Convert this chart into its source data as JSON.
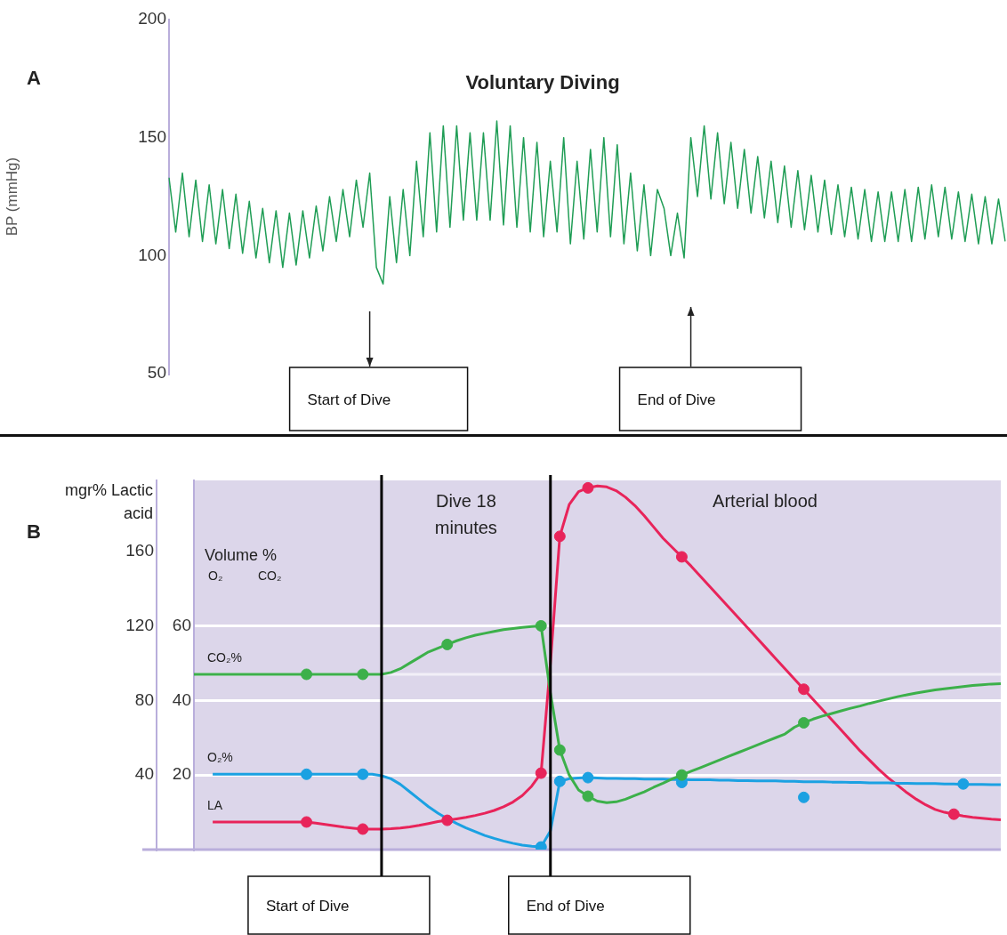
{
  "chart_data": [
    {
      "type": "line",
      "title": "Voluntary Diving",
      "ylabel": "BP (mmHg)",
      "ylim": [
        50,
        200
      ],
      "yticks": [
        50,
        100,
        150,
        200
      ],
      "tick_labels": "y",
      "grid": false,
      "legend": false,
      "annotations": [
        "A",
        "Start of Dive",
        "End of Dive"
      ],
      "categories": [
        null,
        null,
        null,
        null,
        null,
        null,
        null,
        null,
        null,
        null,
        null,
        null,
        null,
        null,
        null,
        null,
        null,
        null,
        null,
        null,
        null,
        null,
        null,
        null,
        null,
        null,
        null,
        null,
        null,
        null,
        null,
        null,
        null,
        null,
        null,
        null,
        null,
        null,
        null,
        null,
        null,
        null,
        null,
        null,
        null,
        null,
        null,
        null,
        null,
        null,
        null,
        null,
        null,
        null,
        null,
        null,
        null,
        null,
        null,
        null,
        null,
        null,
        null,
        null,
        null,
        null,
        null,
        null,
        null,
        null,
        null,
        null,
        null,
        null,
        null,
        null,
        null,
        null,
        null,
        null,
        null,
        null,
        null,
        null,
        null,
        null,
        null,
        null,
        null,
        null,
        null,
        null,
        null,
        null,
        null,
        null,
        null,
        null,
        null,
        null,
        null,
        null,
        null,
        null,
        null,
        null,
        null,
        null,
        null,
        null,
        null,
        null,
        null,
        null,
        null,
        null,
        null,
        null,
        null,
        null,
        null,
        null,
        null,
        null,
        null,
        null
      ],
      "series": [
        {
          "type": "line",
          "color": "#1f9d55",
          "values": [
            133,
            110,
            135,
            108,
            132,
            106,
            130,
            105,
            128,
            103,
            126,
            101,
            123,
            99,
            120,
            97,
            119,
            95,
            118,
            96,
            119,
            99,
            121,
            102,
            125,
            106,
            128,
            108,
            132,
            112,
            135,
            95,
            88,
            125,
            97,
            128,
            100,
            140,
            108,
            152,
            110,
            155,
            112,
            155,
            115,
            152,
            115,
            152,
            115,
            157,
            113,
            155,
            112,
            150,
            110,
            148,
            108,
            140,
            110,
            150,
            105,
            140,
            107,
            145,
            110,
            150,
            108,
            147,
            105,
            135,
            102,
            130,
            100,
            128,
            120,
            100,
            118,
            99,
            150,
            125,
            155,
            124,
            152,
            122,
            148,
            120,
            145,
            118,
            142,
            116,
            140,
            114,
            138,
            112,
            136,
            111,
            134,
            110,
            132,
            109,
            130,
            108,
            129,
            107,
            128,
            106,
            127,
            106,
            127,
            106,
            128,
            106,
            129,
            107,
            130,
            108,
            129,
            107,
            127,
            106,
            126,
            105,
            125,
            105,
            124,
            106
          ]
        }
      ]
    },
    {
      "type": "line",
      "ylabel": "mgr% Lactic acid",
      "y2label": "Volume %",
      "ylim": [
        0,
        198
      ],
      "yticks": [
        40,
        80,
        120,
        160
      ],
      "y2lim": [
        0,
        99
      ],
      "y2ticks": [
        20,
        40,
        60
      ],
      "tick_labels": "y",
      "grid": "y2",
      "legend": false,
      "annotations": [
        "B",
        "O₂",
        "CO₂",
        "Dive 18 minutes",
        "Arterial blood",
        "Start of Dive",
        "End of Dive"
      ],
      "ref_lines": [
        {
          "axis": "y2",
          "value": 47,
          "color": "#f2eff7"
        }
      ],
      "categories": [
        null,
        null,
        null,
        null,
        null,
        null,
        null,
        null,
        null,
        null,
        null,
        null,
        null,
        null,
        null,
        null,
        null,
        null,
        null,
        null,
        null,
        null,
        null,
        null,
        null,
        null,
        null,
        null,
        null,
        null,
        null,
        null,
        null,
        null,
        null,
        null,
        null,
        null,
        null,
        null,
        null,
        null,
        null,
        null,
        null,
        null,
        null,
        null,
        null,
        null,
        null,
        null,
        null,
        null,
        null,
        null,
        null,
        null,
        null,
        null,
        null,
        null,
        null,
        null,
        null,
        null,
        null,
        null,
        null,
        null,
        null,
        null,
        null,
        null,
        null,
        null,
        null,
        null,
        null,
        null,
        null,
        null,
        null,
        null,
        null,
        null,
        null
      ],
      "series": [
        {
          "name": "CO₂%",
          "type": "line",
          "axis": "y2",
          "color": "#3cb04a",
          "values": [
            47,
            47,
            47,
            47,
            47,
            47,
            47,
            47,
            47,
            47,
            47,
            47,
            47,
            47,
            47,
            47,
            47,
            47,
            47,
            47,
            47,
            47.5,
            48.5,
            50,
            51.5,
            53,
            54,
            55,
            56,
            56.8,
            57.5,
            58,
            58.5,
            59,
            59.3,
            59.6,
            59.8,
            60,
            42,
            26.7,
            20,
            16,
            14.3,
            13,
            12.6,
            12.8,
            13.5,
            14.5,
            15.5,
            16.7,
            17.8,
            19,
            20,
            21,
            22,
            23,
            24,
            25,
            26,
            27,
            28,
            29,
            30,
            31,
            32.8,
            34,
            35,
            35.8,
            36.5,
            37.2,
            37.9,
            38.5,
            39.2,
            39.8,
            40.4,
            41,
            41.5,
            42,
            42.4,
            42.8,
            43.1,
            43.4,
            43.7,
            44,
            44.2,
            44.4,
            44.5
          ]
        },
        {
          "type": "scatter",
          "marker": "circle",
          "axis": "y2",
          "color": "#3cb04a",
          "values": [
            null,
            null,
            null,
            null,
            null,
            null,
            null,
            null,
            null,
            null,
            null,
            null,
            47,
            null,
            null,
            null,
            null,
            null,
            47,
            null,
            null,
            null,
            null,
            null,
            null,
            null,
            null,
            55,
            null,
            null,
            null,
            null,
            null,
            null,
            null,
            null,
            null,
            60,
            null,
            26.7,
            null,
            null,
            14.3,
            null,
            null,
            null,
            null,
            null,
            null,
            null,
            null,
            null,
            20,
            null,
            null,
            null,
            null,
            null,
            null,
            null,
            null,
            null,
            null,
            null,
            null,
            34,
            null,
            null,
            null,
            null,
            null,
            null,
            null,
            null,
            null,
            null,
            null,
            null,
            null,
            null,
            null,
            null,
            null,
            null,
            null,
            null,
            null
          ]
        },
        {
          "name": "O₂%",
          "type": "line",
          "axis": "y2",
          "color": "#1ba1e2",
          "values": [
            null,
            null,
            20.2,
            20.2,
            20.2,
            20.2,
            20.2,
            20.2,
            20.2,
            20.2,
            20.2,
            20.2,
            20.2,
            20.2,
            20.2,
            20.2,
            20.2,
            20.2,
            20.2,
            20.2,
            19.8,
            19,
            17.5,
            15.5,
            13.5,
            11.5,
            9.8,
            8.3,
            7,
            5.8,
            4.8,
            3.8,
            3,
            2.3,
            1.7,
            1.2,
            0.9,
            0.7,
            5,
            18.3,
            19,
            19.2,
            19.3,
            19.2,
            19.1,
            19.1,
            19,
            19,
            18.9,
            18.9,
            18.9,
            18.8,
            18.8,
            18.7,
            18.7,
            18.7,
            18.6,
            18.6,
            18.5,
            18.5,
            18.4,
            18.4,
            18.4,
            18.3,
            18.3,
            18.2,
            18.2,
            18.2,
            18.1,
            18.1,
            18,
            18,
            17.9,
            17.9,
            17.9,
            17.8,
            17.8,
            17.7,
            17.7,
            17.7,
            17.6,
            17.6,
            17.5,
            17.5,
            17.5,
            17.4,
            17.4
          ]
        },
        {
          "type": "scatter",
          "marker": "circle",
          "axis": "y2",
          "color": "#1ba1e2",
          "values": [
            null,
            null,
            null,
            null,
            null,
            null,
            null,
            null,
            null,
            null,
            null,
            null,
            20.2,
            null,
            null,
            null,
            null,
            null,
            20.2,
            null,
            null,
            null,
            null,
            null,
            null,
            null,
            null,
            null,
            null,
            null,
            null,
            null,
            null,
            null,
            null,
            null,
            null,
            0.7,
            null,
            18.3,
            null,
            null,
            19.3,
            null,
            null,
            null,
            null,
            null,
            null,
            null,
            null,
            null,
            18,
            null,
            null,
            null,
            null,
            null,
            null,
            null,
            null,
            null,
            null,
            null,
            null,
            14,
            null,
            null,
            null,
            null,
            null,
            null,
            null,
            null,
            null,
            null,
            null,
            null,
            null,
            null,
            null,
            null,
            17.6,
            null,
            null,
            null,
            null
          ]
        },
        {
          "name": "LA",
          "type": "line",
          "color": "#e8245a",
          "values": [
            null,
            null,
            14.8,
            14.8,
            14.8,
            14.8,
            14.8,
            14.8,
            14.8,
            14.8,
            14.8,
            14.8,
            14.8,
            14.2,
            13.5,
            12.8,
            12,
            11.5,
            11,
            11,
            11,
            11.2,
            11.6,
            12.2,
            13,
            14,
            15,
            15.7,
            16.5,
            17.3,
            18.3,
            19.5,
            21,
            23,
            25.5,
            29,
            34,
            41,
            100,
            168,
            185,
            192,
            194,
            195,
            194.5,
            192.5,
            189,
            184.5,
            179,
            173,
            167,
            162,
            157,
            152,
            146.5,
            141,
            135.5,
            130,
            124.5,
            119,
            113.5,
            108,
            102.5,
            97,
            91.5,
            86,
            80.5,
            75,
            69.5,
            64,
            58.5,
            53,
            48,
            43,
            38.5,
            34.5,
            30.5,
            27,
            24,
            21.5,
            20,
            19,
            18,
            17.3,
            16.8,
            16.3,
            16
          ]
        },
        {
          "type": "scatter",
          "marker": "circle",
          "color": "#e8245a",
          "values": [
            null,
            null,
            null,
            null,
            null,
            null,
            null,
            null,
            null,
            null,
            null,
            null,
            14.8,
            null,
            null,
            null,
            null,
            null,
            11,
            null,
            null,
            null,
            null,
            null,
            null,
            null,
            null,
            15.7,
            null,
            null,
            null,
            null,
            null,
            null,
            null,
            null,
            null,
            41,
            null,
            168,
            null,
            null,
            194,
            null,
            null,
            null,
            null,
            null,
            null,
            null,
            null,
            null,
            157,
            null,
            null,
            null,
            null,
            null,
            null,
            null,
            null,
            null,
            null,
            null,
            null,
            86,
            null,
            null,
            null,
            null,
            null,
            null,
            null,
            null,
            null,
            null,
            null,
            null,
            null,
            null,
            null,
            19,
            null,
            null,
            null,
            null,
            null
          ]
        }
      ]
    }
  ]
}
